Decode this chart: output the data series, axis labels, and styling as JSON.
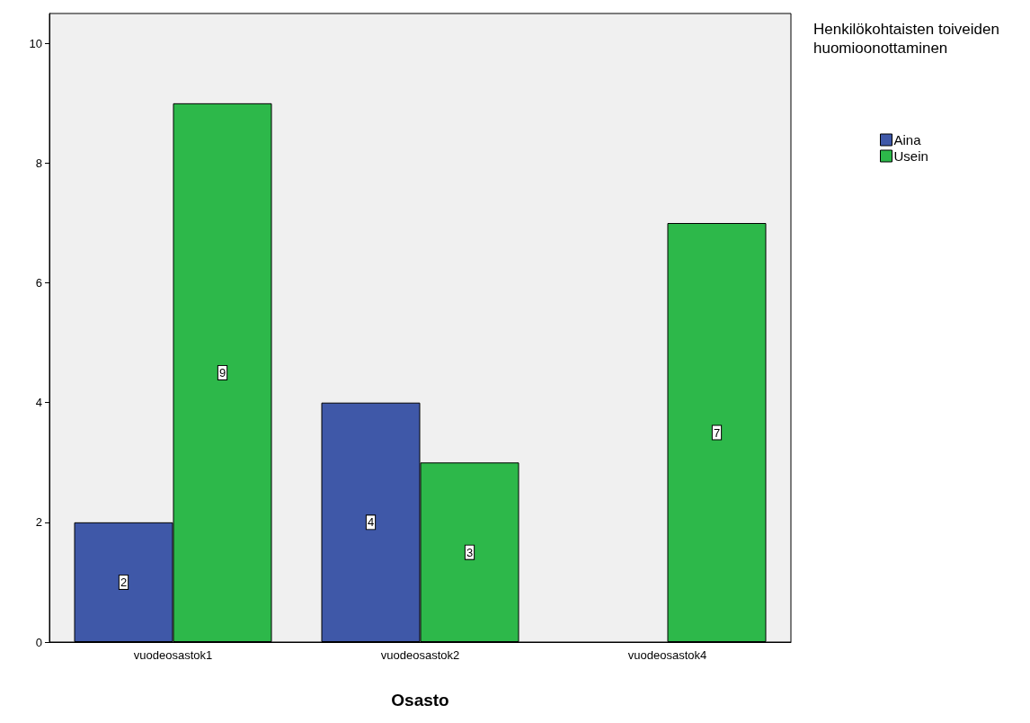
{
  "chart_data": {
    "type": "bar",
    "xlabel": "Osasto",
    "legend_title": "Henkilökohtaisten toiveiden huomioonottaminen",
    "categories": [
      "vuodeosastok1",
      "vuodeosastok2",
      "vuodeosastok4"
    ],
    "series": [
      {
        "name": "Aina",
        "color": "#3f58a8",
        "values": [
          2,
          4,
          null
        ]
      },
      {
        "name": "Usein",
        "color": "#2db84a",
        "values": [
          9,
          3,
          7
        ]
      }
    ],
    "ylim": [
      0,
      10.5
    ],
    "yticks": [
      0,
      2,
      4,
      6,
      8,
      10
    ],
    "grid": false,
    "legend": "top right",
    "data_labels": true
  }
}
